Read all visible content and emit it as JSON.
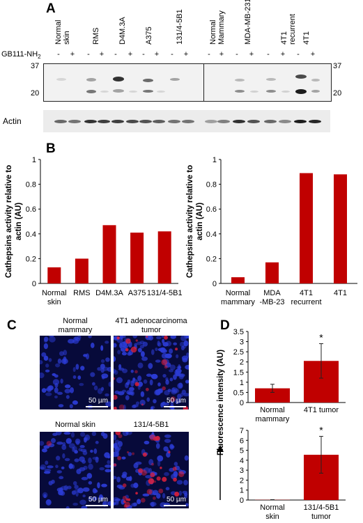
{
  "panels": {
    "a": "A",
    "b": "B",
    "c": "C",
    "d": "D"
  },
  "blot": {
    "treatment_label": "GB111-NH",
    "treatment_sub": "2",
    "lanes_left": [
      "Normal\nskin",
      "RMS",
      "D4M.3A",
      "A375",
      "131/4-5B1"
    ],
    "lanes_right": [
      "Normal\nMammary",
      "MDA-MB-231",
      "4T1\nrecurrent",
      "4T1"
    ],
    "signs": [
      "-",
      "+"
    ],
    "mw_top": "37",
    "mw_bottom": "20",
    "actin_label": "Actin"
  },
  "chart_data": [
    {
      "type": "bar",
      "ylabel": "Cathepsins activity relative to actin (AU)",
      "categories": [
        "Normal\nskin",
        "RMS",
        "D4M.3A",
        "A375",
        "131/4-5B1"
      ],
      "values": [
        0.13,
        0.2,
        0.47,
        0.41,
        0.42
      ],
      "ylim": [
        0,
        1
      ],
      "yticks": [
        "0",
        "0.2",
        "0.4",
        "0.6",
        "0.8",
        "1"
      ],
      "color": "#c00000"
    },
    {
      "type": "bar",
      "ylabel": "Cathepsins activity relative to actin (AU)",
      "categories": [
        "Normal\nmammary",
        "MDA\n-MB-23",
        "4T1\nrecurrent",
        "4T1"
      ],
      "values": [
        0.05,
        0.17,
        0.89,
        0.88
      ],
      "ylim": [
        0,
        1
      ],
      "yticks": [
        "0",
        "0.2",
        "0.4",
        "0.6",
        "0.8",
        "1"
      ],
      "color": "#c00000"
    },
    {
      "type": "bar",
      "ylabel": "Fluorescence intensity (AU)",
      "categories": [
        "Normal\nmammary",
        "4T1 tumor"
      ],
      "values": [
        0.7,
        2.05
      ],
      "errors": [
        0.2,
        0.85
      ],
      "significance": [
        "",
        "*"
      ],
      "ylim": [
        0,
        3.5
      ],
      "yticks": [
        "0",
        "0.5",
        "1",
        "1.5",
        "2",
        "2.5",
        "3",
        "3.5"
      ],
      "color": "#c00000"
    },
    {
      "type": "bar",
      "categories": [
        "Normal\nskin",
        "131/4-5B1\ntumor"
      ],
      "values": [
        0.02,
        4.55
      ],
      "errors": [
        0.02,
        1.85
      ],
      "significance": [
        "",
        "*"
      ],
      "ylim": [
        0,
        7
      ],
      "yticks": [
        "0",
        "1",
        "2",
        "3",
        "4",
        "5",
        "6",
        "7"
      ],
      "color": "#c00000"
    }
  ],
  "micrographs": {
    "titles": [
      "Normal\nmammary",
      "4T1 adenocarcinoma\ntumor",
      "Normal skin",
      "131/4-5B1"
    ],
    "scale": "50 µm"
  }
}
